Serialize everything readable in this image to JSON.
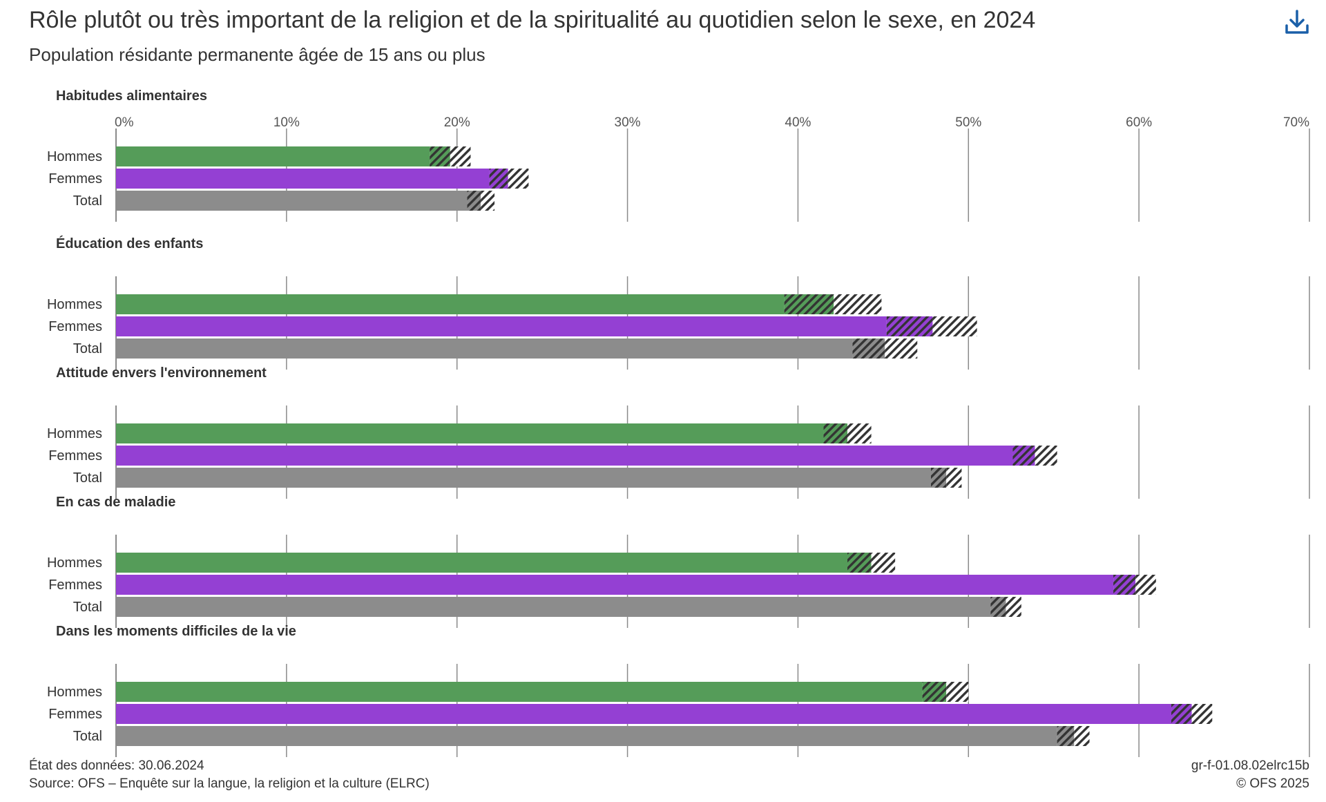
{
  "header": {
    "title": "Rôle plutôt ou très important de la religion et de la spiritualité au quotidien selon le sexe, en 2024",
    "subtitle": "Population résidante permanente âgée de 15 ans ou plus",
    "download_icon": "download-icon"
  },
  "colors": {
    "Hommes": "#559c59",
    "Femmes": "#9440d3",
    "Total": "#8c8c8c",
    "grid": "#8a8a8a",
    "interval": "#333333"
  },
  "chart_data": {
    "type": "bar",
    "orientation": "horizontal",
    "unit": "%",
    "xlim": [
      0,
      70
    ],
    "xticks": [
      "0%",
      "10%",
      "20%",
      "30%",
      "40%",
      "50%",
      "60%",
      "70%"
    ],
    "categories": [
      "Hommes",
      "Femmes",
      "Total"
    ],
    "hatched_segment": "confidence interval",
    "panels": [
      {
        "title": "Habitudes alimentaires",
        "bars": [
          {
            "category": "Hommes",
            "value": 19.6,
            "ci": [
              18.4,
              20.8
            ]
          },
          {
            "category": "Femmes",
            "value": 23.0,
            "ci": [
              21.9,
              24.2
            ]
          },
          {
            "category": "Total",
            "value": 21.4,
            "ci": [
              20.6,
              22.2
            ]
          }
        ]
      },
      {
        "title": "Éducation des enfants",
        "bars": [
          {
            "category": "Hommes",
            "value": 42.1,
            "ci": [
              39.2,
              44.9
            ]
          },
          {
            "category": "Femmes",
            "value": 47.9,
            "ci": [
              45.2,
              50.5
            ]
          },
          {
            "category": "Total",
            "value": 45.1,
            "ci": [
              43.2,
              47.0
            ]
          }
        ]
      },
      {
        "title": "Attitude envers l'environnement",
        "bars": [
          {
            "category": "Hommes",
            "value": 42.9,
            "ci": [
              41.5,
              44.3
            ]
          },
          {
            "category": "Femmes",
            "value": 53.9,
            "ci": [
              52.6,
              55.2
            ]
          },
          {
            "category": "Total",
            "value": 48.7,
            "ci": [
              47.8,
              49.6
            ]
          }
        ]
      },
      {
        "title": "En cas de maladie",
        "bars": [
          {
            "category": "Hommes",
            "value": 44.3,
            "ci": [
              42.9,
              45.7
            ]
          },
          {
            "category": "Femmes",
            "value": 59.8,
            "ci": [
              58.5,
              61.0
            ]
          },
          {
            "category": "Total",
            "value": 52.2,
            "ci": [
              51.3,
              53.1
            ]
          }
        ]
      },
      {
        "title": "Dans les moments difficiles de la vie",
        "bars": [
          {
            "category": "Hommes",
            "value": 48.7,
            "ci": [
              47.3,
              50.0
            ]
          },
          {
            "category": "Femmes",
            "value": 63.1,
            "ci": [
              61.9,
              64.3
            ]
          },
          {
            "category": "Total",
            "value": 56.2,
            "ci": [
              55.2,
              57.1
            ]
          }
        ]
      }
    ]
  },
  "footer": {
    "data_state": "État des données: 30.06.2024",
    "source": "Source: OFS – Enquête sur la langue, la religion et la culture (ELRC)",
    "code": "gr-f-01.08.02elrc15b",
    "copyright": "© OFS 2025"
  }
}
